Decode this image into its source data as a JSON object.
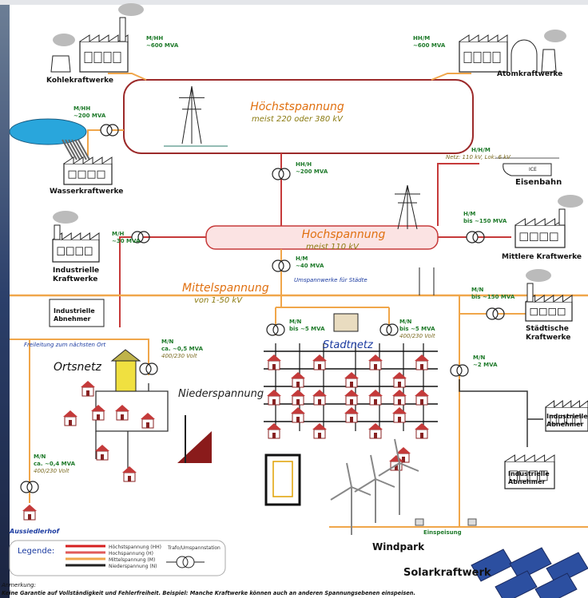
{
  "levels": {
    "hh": {
      "name": "Höchstspannung",
      "sub": "meist 220 oder 380 kV"
    },
    "h": {
      "name": "Hochspannung",
      "sub": "meist 110 kV"
    },
    "m": {
      "name": "Mittelspannung",
      "sub": "von 1-50 kV"
    },
    "n": {
      "name": "Niederspannung"
    }
  },
  "sites": {
    "kohle": "Kohlekraftwerke",
    "atom": "Atomkraftwerke",
    "wasser": "Wasserkraftwerke",
    "bahn": "Eisenbahn",
    "ice": "ICE",
    "mittlere": "Mittlere Kraftwerke",
    "ind_kw": [
      "Industrielle",
      "Kraftwerke"
    ],
    "ind_ab1": [
      "Industrielle",
      "Abnehmer"
    ],
    "staedt": [
      "Städtische",
      "Kraftwerke"
    ],
    "ind_ab2": [
      "Industrielle",
      "Abnehmer"
    ],
    "ind_ab3": [
      "Industrielle",
      "Abnehmer"
    ],
    "stadtnetz": "Stadtnetz",
    "ortsnetz": "Ortsnetz",
    "aussiedler": "Aussiedlerhof",
    "windpark": "Windpark",
    "solar": "Solarkraftwerk"
  },
  "transformers": [
    [
      "M/HH",
      "~600 MVA"
    ],
    [
      "HH/M",
      "~600 MVA"
    ],
    [
      "M/HH",
      "~200 MVA"
    ],
    [
      "HH/H",
      "~200 MVA"
    ],
    [
      "H/H/M",
      "Netz: 110 kV, Lok: 6 kV"
    ],
    [
      "H/M",
      "bis ~150 MVA"
    ],
    [
      "M/H",
      "~30 MVA"
    ],
    [
      "H/M",
      "~40 MVA"
    ],
    [
      "M/N",
      "bis ~150 MVA"
    ],
    [
      "M/N",
      "bis ~5 MVA"
    ],
    [
      "M/N",
      "bis ~5 MVA",
      "400/230 Volt"
    ],
    [
      "M/N",
      "ca. ~0,5 MVA",
      "400/230 Volt"
    ],
    [
      "M/N",
      "~2 MVA"
    ],
    [
      "M/N",
      "ca. ~0,4 MVA",
      "400/230 Volt"
    ]
  ],
  "notes": {
    "umspann": "Umspannwerke für Städte",
    "freileitung": "Freileitung zum nächsten Ort",
    "einspeisung": "Einspeisung"
  },
  "legend": {
    "title": "Legende:",
    "items": [
      "Höchstspannung (HH)",
      "Hochspannung (H)",
      "Mittelspannung (M)",
      "Niederspannung (N)"
    ],
    "trafo": "Trafo/Umspannstation"
  },
  "footnote": {
    "title": "Anmerkung:",
    "text": "Keine Garantie auf Vollständigkeit und Fehlerfreiheit. Beispiel: Manche Kraftwerke können auch an anderen Spannungsebenen einspeisen."
  }
}
